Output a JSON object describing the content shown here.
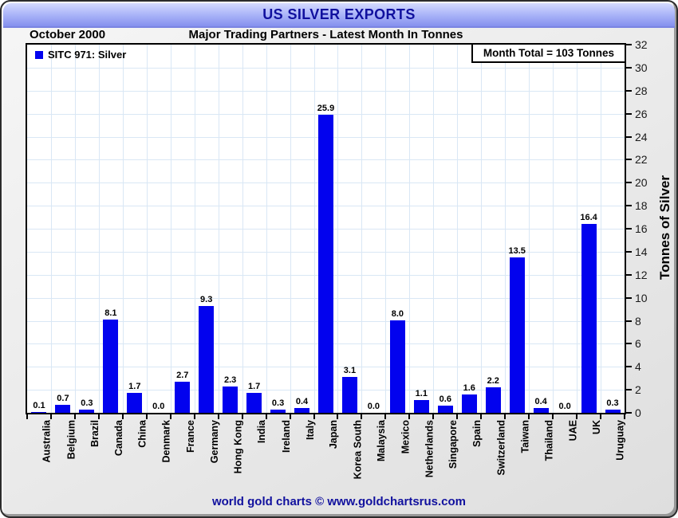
{
  "header": {
    "title": "US SILVER EXPORTS"
  },
  "subheader": {
    "date_label": "October 2000",
    "subtitle": "Major Trading Partners - Latest Month In Tonnes"
  },
  "legend": {
    "label": "SITC 971: Silver"
  },
  "annotation": {
    "month_total": "Month Total = 103 Tonnes"
  },
  "footer": {
    "credit": "world gold charts © www.goldchartsrus.com"
  },
  "colors": {
    "bar": "#0202ee",
    "grid": "#d9e7f5",
    "navy_text": "#10109e",
    "plot_border": "#000000",
    "header_gradient_top": "#d4dafe",
    "header_gradient_bottom": "#8590ee",
    "page_background": "#e9e9e9"
  },
  "chart_data": {
    "type": "bar",
    "title": "US SILVER EXPORTS",
    "subtitle": "Major Trading Partners - Latest Month In Tonnes",
    "period": "October 2000",
    "series_name": "SITC 971: Silver",
    "categories": [
      "Australia",
      "Belgium",
      "Brazil",
      "Canada",
      "China",
      "Denmark",
      "France",
      "Germany",
      "Hong Kong",
      "India",
      "Ireland",
      "Italy",
      "Japan",
      "Korea South",
      "Malaysia",
      "Mexico",
      "Netherlands",
      "Singapore",
      "Spain",
      "Switzerland",
      "Taiwan",
      "Thailand",
      "UAE",
      "UK",
      "Uruguay"
    ],
    "values": [
      0.1,
      0.7,
      0.3,
      8.1,
      1.7,
      0.0,
      2.7,
      9.3,
      2.3,
      1.7,
      0.3,
      0.4,
      25.9,
      3.1,
      0.0,
      8.0,
      1.1,
      0.6,
      1.6,
      2.2,
      13.5,
      0.4,
      0.0,
      16.4,
      0.3
    ],
    "xlabel": "",
    "ylabel": "Tonnes of Silver",
    "ylim": [
      0,
      32
    ],
    "ytick_step": 2,
    "grid": true,
    "value_labels": true,
    "legend_position": "top-left",
    "annotation": "Month Total = 103 Tonnes"
  }
}
